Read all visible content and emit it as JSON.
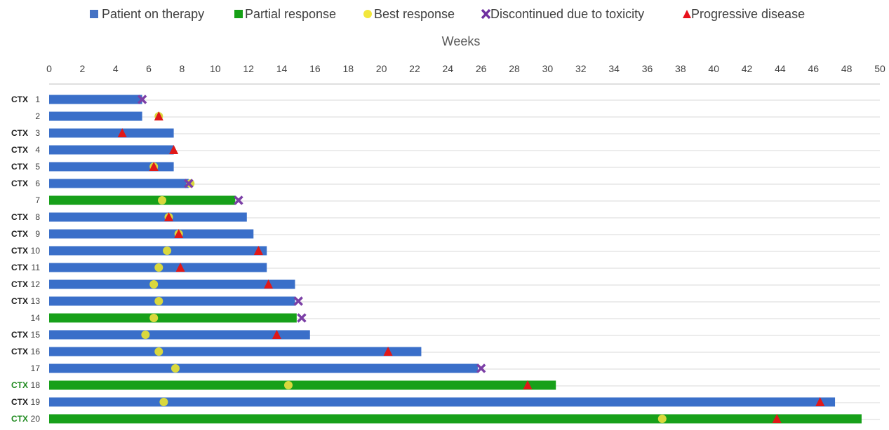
{
  "chart_data": {
    "type": "bar",
    "orientation": "horizontal",
    "xlabel": "Weeks",
    "xlim": [
      0,
      50
    ],
    "x_ticks": [
      0,
      2,
      4,
      6,
      8,
      10,
      12,
      14,
      16,
      18,
      20,
      22,
      24,
      26,
      28,
      30,
      32,
      34,
      36,
      38,
      40,
      42,
      44,
      46,
      48,
      50
    ],
    "grid": true,
    "legend_position": "top",
    "legend": [
      {
        "label": "Patient on therapy",
        "marker": "square",
        "color": "#4472C4"
      },
      {
        "label": "Partial response",
        "marker": "square",
        "color": "#16A016"
      },
      {
        "label": "Best response",
        "marker": "circle",
        "color": "#F2E73C"
      },
      {
        "label": "Discontinued due to toxicity",
        "marker": "x",
        "color": "#7030A0"
      },
      {
        "label": "Progressive disease",
        "marker": "triangle",
        "color": "#E8111B"
      }
    ],
    "colors": {
      "on_therapy": "#3A6FC9",
      "partial_response": "#17A01A",
      "best_response": "#D9D83D",
      "toxicity": "#7B3FA6",
      "progressive": "#E01818",
      "ctx_black": "#1a1a1a",
      "ctx_green": "#1F8A1F",
      "grid": "#D9D9D9"
    },
    "rows": [
      {
        "id": "1",
        "tag": "CTX",
        "tag_color": "black",
        "status": "on_therapy",
        "duration": 5.6,
        "best_response": null,
        "toxicity": 5.6,
        "progressive": null
      },
      {
        "id": "2",
        "tag": "",
        "tag_color": "black",
        "status": "on_therapy",
        "duration": 5.6,
        "best_response": 6.6,
        "toxicity": null,
        "progressive": 6.6
      },
      {
        "id": "3",
        "tag": "CTX",
        "tag_color": "black",
        "status": "on_therapy",
        "duration": 7.5,
        "best_response": null,
        "toxicity": null,
        "progressive": 4.4
      },
      {
        "id": "4",
        "tag": "CTX",
        "tag_color": "black",
        "status": "on_therapy",
        "duration": 7.5,
        "best_response": null,
        "toxicity": null,
        "progressive": 7.5
      },
      {
        "id": "5",
        "tag": "CTX",
        "tag_color": "black",
        "status": "on_therapy",
        "duration": 7.5,
        "best_response": 6.3,
        "toxicity": null,
        "progressive": 6.3
      },
      {
        "id": "6",
        "tag": "CTX",
        "tag_color": "black",
        "status": "on_therapy",
        "duration": 8.4,
        "best_response": 8.5,
        "toxicity": 8.4,
        "progressive": null
      },
      {
        "id": "7",
        "tag": "",
        "tag_color": "black",
        "status": "partial_response",
        "duration": 11.2,
        "best_response": 6.8,
        "toxicity": 11.4,
        "progressive": null
      },
      {
        "id": "8",
        "tag": "CTX",
        "tag_color": "black",
        "status": "on_therapy",
        "duration": 11.9,
        "best_response": 7.2,
        "toxicity": null,
        "progressive": 7.2
      },
      {
        "id": "9",
        "tag": "CTX",
        "tag_color": "black",
        "status": "on_therapy",
        "duration": 12.3,
        "best_response": 7.8,
        "toxicity": null,
        "progressive": 7.8
      },
      {
        "id": "10",
        "tag": "CTX",
        "tag_color": "black",
        "status": "on_therapy",
        "duration": 13.1,
        "best_response": 7.1,
        "toxicity": null,
        "progressive": 12.6
      },
      {
        "id": "11",
        "tag": "CTX",
        "tag_color": "black",
        "status": "on_therapy",
        "duration": 13.1,
        "best_response": 6.6,
        "toxicity": null,
        "progressive": 7.9
      },
      {
        "id": "12",
        "tag": "CTX",
        "tag_color": "black",
        "status": "on_therapy",
        "duration": 14.8,
        "best_response": 6.3,
        "toxicity": null,
        "progressive": 13.2
      },
      {
        "id": "13",
        "tag": "CTX",
        "tag_color": "black",
        "status": "on_therapy",
        "duration": 14.8,
        "best_response": 6.6,
        "toxicity": 15.0,
        "progressive": null
      },
      {
        "id": "14",
        "tag": "",
        "tag_color": "black",
        "status": "partial_response",
        "duration": 14.9,
        "best_response": 6.3,
        "toxicity": 15.2,
        "progressive": null
      },
      {
        "id": "15",
        "tag": "CTX",
        "tag_color": "black",
        "status": "on_therapy",
        "duration": 15.7,
        "best_response": 5.8,
        "toxicity": null,
        "progressive": 13.7
      },
      {
        "id": "16",
        "tag": "CTX",
        "tag_color": "black",
        "status": "on_therapy",
        "duration": 22.4,
        "best_response": 6.6,
        "toxicity": null,
        "progressive": 20.4
      },
      {
        "id": "17",
        "tag": "",
        "tag_color": "black",
        "status": "on_therapy",
        "duration": 25.8,
        "best_response": 7.6,
        "toxicity": 26.0,
        "progressive": null
      },
      {
        "id": "18",
        "tag": "CTX",
        "tag_color": "green",
        "status": "partial_response",
        "duration": 30.5,
        "best_response": 14.4,
        "toxicity": null,
        "progressive": 28.8
      },
      {
        "id": "19",
        "tag": "CTX",
        "tag_color": "black",
        "status": "on_therapy",
        "duration": 47.3,
        "best_response": 6.9,
        "toxicity": null,
        "progressive": 46.4
      },
      {
        "id": "20",
        "tag": "CTX",
        "tag_color": "green",
        "status": "partial_response",
        "duration": 48.9,
        "best_response": 36.9,
        "toxicity": null,
        "progressive": 43.8
      }
    ]
  }
}
